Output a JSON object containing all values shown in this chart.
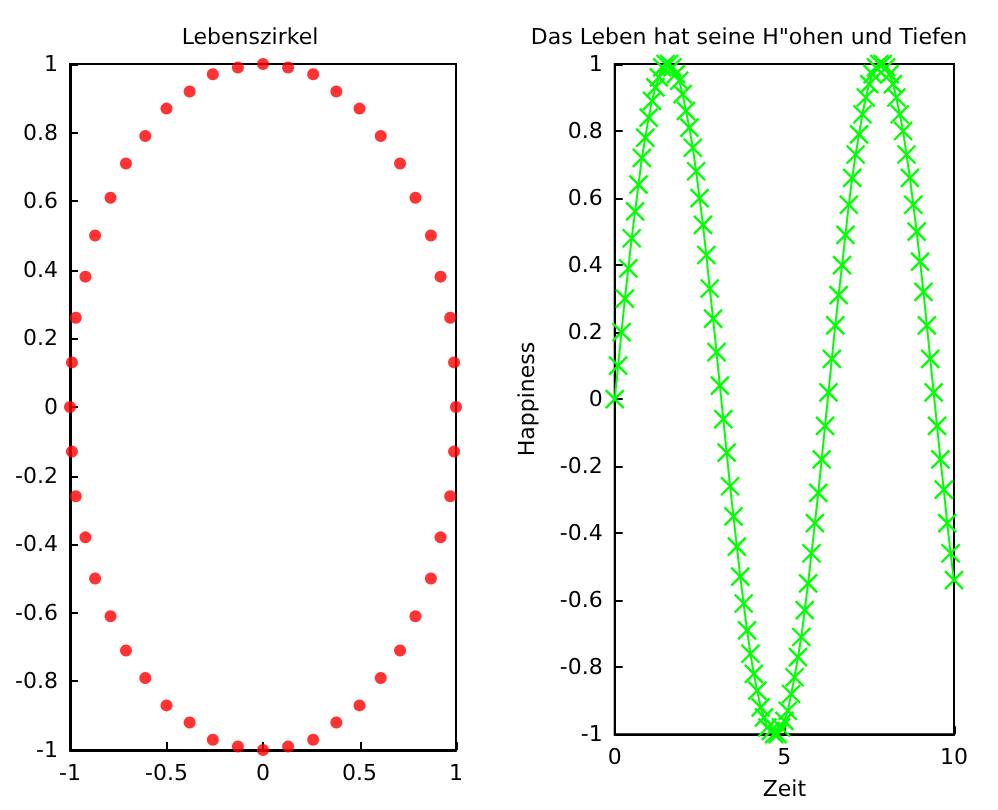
{
  "chart_data": [
    {
      "type": "scatter",
      "title": "Lebenszirkel",
      "marker": "circle",
      "grid": false,
      "xlim": [
        -1,
        1
      ],
      "xticks": [
        -1,
        -0.5,
        0,
        0.5,
        1
      ],
      "ylim": [
        -1,
        1
      ],
      "yticks": [
        -1,
        -0.8,
        -0.6,
        -0.4,
        -0.2,
        0,
        0.2,
        0.4,
        0.6,
        0.8,
        1
      ],
      "series": [
        {
          "color": "#ff0000",
          "x": [
            1,
            0.99,
            0.97,
            0.92,
            0.87,
            0.79,
            0.71,
            0.61,
            0.5,
            0.38,
            0.26,
            0.13,
            0,
            -0.13,
            -0.26,
            -0.38,
            -0.5,
            -0.61,
            -0.71,
            -0.79,
            -0.87,
            -0.92,
            -0.97,
            -0.99,
            -1,
            -0.99,
            -0.97,
            -0.92,
            -0.87,
            -0.79,
            -0.71,
            -0.61,
            -0.5,
            -0.38,
            -0.26,
            -0.13,
            0,
            0.13,
            0.26,
            0.38,
            0.5,
            0.61,
            0.71,
            0.79,
            0.87,
            0.92,
            0.97,
            0.99
          ],
          "values": [
            0,
            0.13,
            0.26,
            0.38,
            0.5,
            0.61,
            0.71,
            0.79,
            0.87,
            0.92,
            0.97,
            0.99,
            1,
            0.99,
            0.97,
            0.92,
            0.87,
            0.79,
            0.71,
            0.61,
            0.5,
            0.38,
            0.26,
            0.13,
            0,
            -0.13,
            -0.26,
            -0.38,
            -0.5,
            -0.61,
            -0.71,
            -0.79,
            -0.87,
            -0.92,
            -0.97,
            -0.99,
            -1,
            -0.99,
            -0.97,
            -0.92,
            -0.87,
            -0.79,
            -0.71,
            -0.61,
            -0.5,
            -0.38,
            -0.26,
            -0.13
          ]
        }
      ]
    },
    {
      "type": "line",
      "title": "Das Leben hat seine H\"ohen und Tiefen",
      "xlabel": "Zeit",
      "ylabel": "Happiness",
      "marker": "cross",
      "line_style": "solid",
      "grid": false,
      "xlim": [
        0,
        10
      ],
      "xticks": [
        0,
        5,
        10
      ],
      "ylim": [
        -1,
        1
      ],
      "yticks": [
        -1,
        -0.8,
        -0.6,
        -0.4,
        -0.2,
        0,
        0.2,
        0.4,
        0.6,
        0.8,
        1
      ],
      "series": [
        {
          "color": "#00ff00",
          "x": [
            0,
            0.1,
            0.2,
            0.3,
            0.4,
            0.5,
            0.6,
            0.7,
            0.8,
            0.9,
            1,
            1.1,
            1.2,
            1.3,
            1.4,
            1.5,
            1.6,
            1.7,
            1.8,
            1.9,
            2,
            2.1,
            2.2,
            2.3,
            2.4,
            2.5,
            2.6,
            2.7,
            2.8,
            2.9,
            3,
            3.1,
            3.2,
            3.3,
            3.4,
            3.5,
            3.6,
            3.7,
            3.8,
            3.9,
            4,
            4.1,
            4.2,
            4.3,
            4.4,
            4.5,
            4.6,
            4.7,
            4.8,
            4.9,
            5,
            5.1,
            5.2,
            5.3,
            5.4,
            5.5,
            5.6,
            5.7,
            5.8,
            5.9,
            6,
            6.1,
            6.2,
            6.3,
            6.4,
            6.5,
            6.6,
            6.7,
            6.8,
            6.9,
            7,
            7.1,
            7.2,
            7.3,
            7.4,
            7.5,
            7.6,
            7.7,
            7.8,
            7.9,
            8,
            8.1,
            8.2,
            8.3,
            8.4,
            8.5,
            8.6,
            8.7,
            8.8,
            8.9,
            9,
            9.1,
            9.2,
            9.3,
            9.4,
            9.5,
            9.6,
            9.7,
            9.8,
            9.9,
            10
          ],
          "values": [
            0,
            0.1,
            0.2,
            0.3,
            0.39,
            0.48,
            0.56,
            0.64,
            0.72,
            0.78,
            0.84,
            0.89,
            0.93,
            0.96,
            0.99,
            1,
            1,
            0.99,
            0.97,
            0.95,
            0.91,
            0.86,
            0.81,
            0.75,
            0.68,
            0.6,
            0.52,
            0.43,
            0.33,
            0.24,
            0.14,
            0.04,
            -0.06,
            -0.16,
            -0.26,
            -0.35,
            -0.44,
            -0.53,
            -0.61,
            -0.69,
            -0.76,
            -0.82,
            -0.87,
            -0.92,
            -0.95,
            -0.98,
            -0.99,
            -1,
            -1,
            -0.98,
            -0.96,
            -0.93,
            -0.88,
            -0.83,
            -0.77,
            -0.71,
            -0.63,
            -0.55,
            -0.46,
            -0.37,
            -0.28,
            -0.18,
            -0.08,
            0.02,
            0.12,
            0.22,
            0.31,
            0.4,
            0.49,
            0.58,
            0.66,
            0.73,
            0.79,
            0.85,
            0.9,
            0.94,
            0.97,
            0.99,
            1,
            1,
            0.99,
            0.97,
            0.94,
            0.9,
            0.85,
            0.8,
            0.73,
            0.66,
            0.58,
            0.5,
            0.41,
            0.32,
            0.22,
            0.12,
            0.02,
            -0.08,
            -0.18,
            -0.27,
            -0.37,
            -0.46,
            -0.54
          ]
        }
      ]
    }
  ]
}
